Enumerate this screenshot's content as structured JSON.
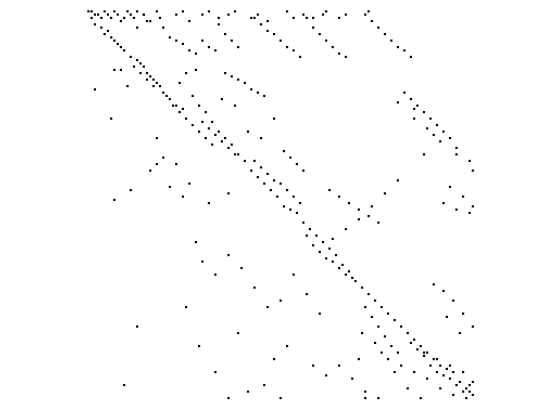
{
  "chart_data": {
    "type": "scatter",
    "title": "",
    "xlabel": "",
    "ylabel": "",
    "axes_visible": false,
    "grid": false,
    "xlim": [
      0,
      120
    ],
    "ylim": [
      120,
      0
    ],
    "marker_color": "#000000",
    "background_color": "#ffffff",
    "series": [
      {
        "points": [
          [
            1,
            1
          ],
          [
            2,
            1
          ],
          [
            3,
            2
          ],
          [
            2,
            3
          ],
          [
            4,
            2
          ],
          [
            5,
            3
          ],
          [
            6,
            1
          ],
          [
            7,
            2
          ],
          [
            8,
            3
          ],
          [
            9,
            1
          ],
          [
            10,
            2
          ],
          [
            11,
            4
          ],
          [
            12,
            3
          ],
          [
            13,
            1
          ],
          [
            14,
            2
          ],
          [
            15,
            3
          ],
          [
            16,
            1
          ],
          [
            18,
            2
          ],
          [
            19,
            4
          ],
          [
            22,
            1
          ],
          [
            23,
            3
          ],
          [
            28,
            2
          ],
          [
            30,
            1
          ],
          [
            32,
            4
          ],
          [
            36,
            2
          ],
          [
            38,
            1
          ],
          [
            41,
            3
          ],
          [
            44,
            2
          ],
          [
            46,
            1
          ],
          [
            51,
            3
          ],
          [
            53,
            2
          ],
          [
            56,
            4
          ],
          [
            62,
            1
          ],
          [
            64,
            3
          ],
          [
            67,
            2
          ],
          [
            70,
            3
          ],
          [
            73,
            2
          ],
          [
            74,
            1
          ],
          [
            78,
            3
          ],
          [
            80,
            2
          ],
          [
            87,
            1
          ],
          [
            3,
            5
          ],
          [
            5,
            6
          ],
          [
            7,
            7
          ],
          [
            8,
            9
          ],
          [
            9,
            10
          ],
          [
            6,
            8
          ],
          [
            10,
            11
          ],
          [
            11,
            12
          ],
          [
            12,
            13
          ],
          [
            14,
            15
          ],
          [
            16,
            16
          ],
          [
            17,
            17
          ],
          [
            18,
            18
          ],
          [
            19,
            20
          ],
          [
            20,
            21
          ],
          [
            21,
            22
          ],
          [
            22,
            23
          ],
          [
            23,
            24
          ],
          [
            15,
            18
          ],
          [
            17,
            20
          ],
          [
            19,
            22
          ],
          [
            21,
            24
          ],
          [
            24,
            26
          ],
          [
            26,
            28
          ],
          [
            28,
            30
          ],
          [
            30,
            31
          ],
          [
            25,
            27
          ],
          [
            27,
            30
          ],
          [
            29,
            32
          ],
          [
            31,
            34
          ],
          [
            33,
            36
          ],
          [
            35,
            38
          ],
          [
            37,
            40
          ],
          [
            39,
            42
          ],
          [
            36,
            35
          ],
          [
            38,
            37
          ],
          [
            40,
            39
          ],
          [
            42,
            41
          ],
          [
            44,
            43
          ],
          [
            46,
            45
          ],
          [
            33,
            27
          ],
          [
            35,
            30
          ],
          [
            37,
            32
          ],
          [
            39,
            35
          ],
          [
            41,
            38
          ],
          [
            43,
            40
          ],
          [
            45,
            42
          ],
          [
            47,
            45
          ],
          [
            49,
            47
          ],
          [
            51,
            50
          ],
          [
            53,
            52
          ],
          [
            55,
            54
          ],
          [
            57,
            56
          ],
          [
            59,
            58
          ],
          [
            61,
            61
          ],
          [
            63,
            62
          ],
          [
            52,
            47
          ],
          [
            54,
            49
          ],
          [
            56,
            51
          ],
          [
            58,
            53
          ],
          [
            60,
            54
          ],
          [
            62,
            56
          ],
          [
            64,
            58
          ],
          [
            66,
            60
          ],
          [
            65,
            63
          ],
          [
            67,
            66
          ],
          [
            69,
            68
          ],
          [
            71,
            70
          ],
          [
            73,
            72
          ],
          [
            75,
            74
          ],
          [
            77,
            76
          ],
          [
            68,
            70
          ],
          [
            70,
            73
          ],
          [
            72,
            75
          ],
          [
            74,
            77
          ],
          [
            76,
            78
          ],
          [
            78,
            80
          ],
          [
            80,
            82
          ],
          [
            82,
            83
          ],
          [
            79,
            79
          ],
          [
            81,
            81
          ],
          [
            83,
            84
          ],
          [
            85,
            86
          ],
          [
            87,
            88
          ],
          [
            89,
            90
          ],
          [
            91,
            92
          ],
          [
            93,
            94
          ],
          [
            86,
            92
          ],
          [
            88,
            95
          ],
          [
            90,
            98
          ],
          [
            92,
            101
          ],
          [
            94,
            104
          ],
          [
            96,
            106
          ],
          [
            95,
            96
          ],
          [
            97,
            98
          ],
          [
            99,
            100
          ],
          [
            101,
            102
          ],
          [
            103,
            104
          ],
          [
            105,
            106
          ],
          [
            107,
            108
          ],
          [
            109,
            110
          ],
          [
            100,
            103
          ],
          [
            102,
            105
          ],
          [
            104,
            107
          ],
          [
            106,
            110
          ],
          [
            108,
            112
          ],
          [
            110,
            113
          ],
          [
            112,
            114
          ],
          [
            114,
            116
          ],
          [
            111,
            111
          ],
          [
            113,
            112
          ],
          [
            115,
            115
          ],
          [
            117,
            117
          ],
          [
            118,
            118
          ],
          [
            119,
            119
          ],
          [
            116,
            118
          ],
          [
            118,
            116
          ],
          [
            24,
            6
          ],
          [
            26,
            9
          ],
          [
            28,
            10
          ],
          [
            30,
            11
          ],
          [
            32,
            13
          ],
          [
            34,
            14
          ],
          [
            36,
            10
          ],
          [
            38,
            12
          ],
          [
            40,
            13
          ],
          [
            41,
            5
          ],
          [
            43,
            8
          ],
          [
            45,
            10
          ],
          [
            47,
            12
          ],
          [
            43,
            20
          ],
          [
            45,
            21
          ],
          [
            47,
            22
          ],
          [
            49,
            23
          ],
          [
            51,
            25
          ],
          [
            53,
            26
          ],
          [
            55,
            27
          ],
          [
            52,
            3
          ],
          [
            54,
            5
          ],
          [
            56,
            7
          ],
          [
            58,
            8
          ],
          [
            60,
            10
          ],
          [
            62,
            12
          ],
          [
            64,
            13
          ],
          [
            66,
            15
          ],
          [
            68,
            3
          ],
          [
            70,
            6
          ],
          [
            72,
            8
          ],
          [
            74,
            10
          ],
          [
            76,
            12
          ],
          [
            78,
            14
          ],
          [
            80,
            15
          ],
          [
            86,
            2
          ],
          [
            88,
            4
          ],
          [
            90,
            6
          ],
          [
            92,
            8
          ],
          [
            94,
            10
          ],
          [
            96,
            12
          ],
          [
            98,
            13
          ],
          [
            100,
            15
          ],
          [
            98,
            26
          ],
          [
            100,
            28
          ],
          [
            102,
            30
          ],
          [
            104,
            32
          ],
          [
            106,
            34
          ],
          [
            108,
            36
          ],
          [
            110,
            38
          ],
          [
            112,
            40
          ],
          [
            96,
            29
          ],
          [
            101,
            34
          ],
          [
            105,
            37
          ],
          [
            109,
            41
          ],
          [
            114,
            45
          ],
          [
            118,
            47
          ],
          [
            119,
            50
          ],
          [
            112,
            55
          ],
          [
            116,
            58
          ],
          [
            119,
            61
          ],
          [
            110,
            60
          ],
          [
            114,
            62
          ],
          [
            118,
            63
          ],
          [
            75,
            56
          ],
          [
            78,
            58
          ],
          [
            81,
            60
          ],
          [
            84,
            62
          ],
          [
            87,
            64
          ],
          [
            90,
            66
          ],
          [
            96,
            53
          ],
          [
            92,
            57
          ],
          [
            88,
            61
          ],
          [
            84,
            65
          ],
          [
            80,
            68
          ],
          [
            76,
            71
          ],
          [
            107,
            85
          ],
          [
            110,
            87
          ],
          [
            113,
            90
          ],
          [
            116,
            94
          ],
          [
            119,
            98
          ],
          [
            111,
            95
          ],
          [
            115,
            100
          ],
          [
            104,
            106
          ],
          [
            108,
            108
          ],
          [
            112,
            110
          ],
          [
            116,
            112
          ],
          [
            119,
            115
          ],
          [
            61,
            44
          ],
          [
            63,
            46
          ],
          [
            65,
            48
          ],
          [
            67,
            50
          ],
          [
            20,
            50
          ],
          [
            22,
            48
          ],
          [
            24,
            46
          ],
          [
            26,
            55
          ],
          [
            30,
            58
          ],
          [
            32,
            54
          ],
          [
            38,
            60
          ],
          [
            44,
            57
          ],
          [
            9,
            59
          ],
          [
            14,
            56
          ],
          [
            16,
            98
          ],
          [
            12,
            116
          ],
          [
            40,
            112
          ],
          [
            47,
            100
          ],
          [
            35,
            104
          ],
          [
            31,
            92
          ],
          [
            44,
            120
          ],
          [
            50,
            118
          ],
          [
            55,
            116
          ],
          [
            60,
            120
          ],
          [
            84,
            108
          ],
          [
            86,
            118
          ],
          [
            90,
            120
          ],
          [
            99,
            117
          ],
          [
            103,
            120
          ],
          [
            95,
            112
          ],
          [
            58,
            108
          ],
          [
            62,
            104
          ],
          [
            70,
            110
          ],
          [
            74,
            113
          ],
          [
            3,
            25
          ],
          [
            8,
            34
          ],
          [
            11,
            19
          ],
          [
            22,
            40
          ],
          [
            28,
            48
          ],
          [
            34,
            72
          ],
          [
            36,
            78
          ],
          [
            40,
            82
          ],
          [
            44,
            76
          ],
          [
            48,
            80
          ],
          [
            52,
            86
          ],
          [
            56,
            92
          ],
          [
            60,
            90
          ],
          [
            64,
            82
          ],
          [
            68,
            88
          ],
          [
            72,
            94
          ],
          [
            78,
            110
          ],
          [
            82,
            114
          ],
          [
            86,
            120
          ],
          [
            104,
            45
          ],
          [
            101,
            31
          ],
          [
            107,
            39
          ],
          [
            114,
            43
          ],
          [
            50,
            38
          ],
          [
            54,
            40
          ],
          [
            58,
            34
          ],
          [
            46,
            30
          ],
          [
            42,
            28
          ],
          [
            18,
            2
          ],
          [
            20,
            4
          ],
          [
            16,
            6
          ],
          [
            9,
            19
          ],
          [
            13,
            24
          ],
          [
            29,
            23
          ],
          [
            31,
            20
          ],
          [
            34,
            19
          ],
          [
            85,
            100
          ],
          [
            89,
            103
          ],
          [
            91,
            106
          ],
          [
            93,
            108
          ],
          [
            97,
            110
          ],
          [
            101,
            112
          ],
          [
            105,
            114
          ],
          [
            109,
            117
          ],
          [
            113,
            119
          ],
          [
            117,
            120
          ]
        ]
      }
    ]
  }
}
